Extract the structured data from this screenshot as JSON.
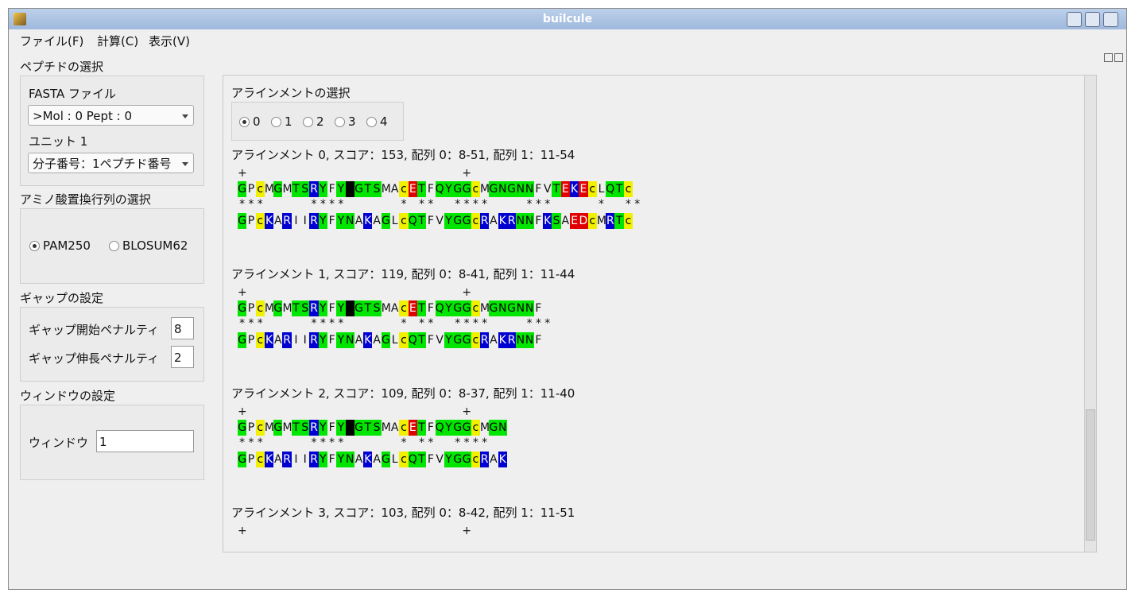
{
  "window": {
    "title": "builcule"
  },
  "menu": [
    "ファイル(F)",
    "計算(C)",
    "表示(V)"
  ],
  "peptide": {
    "title": "ペプチドの選択",
    "fasta_label": "FASTA ファイル",
    "fasta_value": ">Mol : 0  Pept : 0",
    "unit_label": "ユニット 1",
    "unit_value": "分子番号：1ペプチド番号"
  },
  "matrix": {
    "title": "アミノ酸置換行列の選択",
    "options": [
      "PAM250",
      "BLOSUM62"
    ],
    "selected": 0
  },
  "gap": {
    "title": "ギャップの設定",
    "rows": [
      {
        "label": "ギャップ開始ペナルティ",
        "value": "8"
      },
      {
        "label": "ギャップ伸長ペナルティ",
        "value": "2"
      }
    ]
  },
  "window_setting": {
    "title": "ウィンドウの設定",
    "label": "ウィンドウ",
    "value": "1"
  },
  "alignment_select": {
    "title": "アラインメントの選択",
    "options": [
      "0",
      "1",
      "2",
      "3",
      "4"
    ],
    "selected": 0
  },
  "residue_colors": {
    "G": [
      "#00e600",
      "#000"
    ],
    "N": [
      "#00e600",
      "#000"
    ],
    "Q": [
      "#00e600",
      "#000"
    ],
    "S": [
      "#00e600",
      "#000"
    ],
    "T": [
      "#00e600",
      "#000"
    ],
    "Y": [
      "#00e600",
      "#000"
    ],
    "K": [
      "#0000d0",
      "#fff"
    ],
    "R": [
      "#0000d0",
      "#fff"
    ],
    "E": [
      "#e00000",
      "#fff"
    ],
    "D": [
      "#e00000",
      "#fff"
    ],
    "c": [
      "#f0f000",
      "#000"
    ],
    "-": [
      "#000",
      "#000"
    ]
  },
  "alignments": [
    {
      "header": "アラインメント 0, スコア：153, 配列 0：8-51, 配列 1：11-54",
      "marker": "+                        +",
      "seq1": "GPcMGMTSRYFY-GTSMAcETFQYGGcMGNGNNFVTEKEcLQTc",
      "match": "***     ****      * **  ****    ***     *  **",
      "seq2": "GPcKARIIRYFYNAKAGLcQTFVYGGcRAKRNNFKSAEDcMRTc"
    },
    {
      "header": "アラインメント 1, スコア：119, 配列 0：8-41, 配列 1：11-44",
      "marker": "+                        +",
      "seq1": "GPcMGMTSRYFY-GTSMAcETFQYGGcMGNGNNF",
      "match": "***     ****      * **  ****    ***",
      "seq2": "GPcKARIIRYFYNAKAGLcQTFVYGGcRAKRNNF"
    },
    {
      "header": "アラインメント 2, スコア：109, 配列 0：8-37, 配列 1：11-40",
      "marker": "+                        +",
      "seq1": "GPcMGMTSRYFY-GTSMAcETFQYGGcMGN",
      "match": "***     ****      * **  ****",
      "seq2": "GPcKARIIRYFYNAKAGLcQTFVYGGcRAK"
    },
    {
      "header": "アラインメント 3, スコア：103, 配列 0：8-42, 配列 1：11-51",
      "marker": "+                        +"
    }
  ]
}
